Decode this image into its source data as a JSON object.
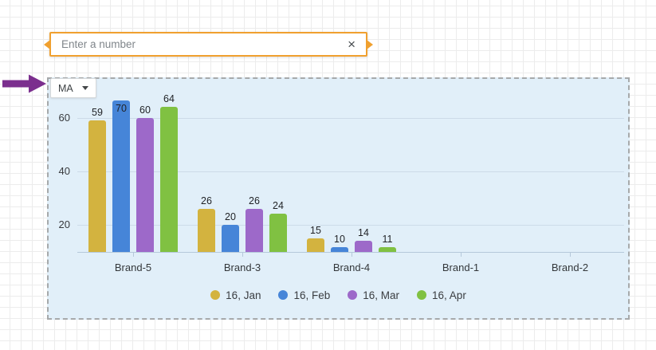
{
  "numeric_input": {
    "placeholder": "Enter a number",
    "clear_icon": "×"
  },
  "dropdown": {
    "value": "MA"
  },
  "colors": {
    "input_accent": "#f0a02f",
    "annotation_arrow": "#7b2f8e",
    "chart_background": "#e1eff9"
  },
  "chart_data": {
    "type": "bar",
    "title": "",
    "categories": [
      "Brand-5",
      "Brand-3",
      "Brand-4",
      "Brand-1",
      "Brand-2"
    ],
    "series": [
      {
        "name": "16, Jan",
        "color": "#d3b33f",
        "values": [
          59,
          26,
          15,
          0,
          0
        ]
      },
      {
        "name": "16, Feb",
        "color": "#4685d8",
        "values": [
          70,
          20,
          10,
          0,
          0
        ]
      },
      {
        "name": "16, Mar",
        "color": "#9d69c9",
        "values": [
          60,
          26,
          14,
          0,
          0
        ]
      },
      {
        "name": "16, Apr",
        "color": "#80c142",
        "values": [
          64,
          24,
          11,
          0,
          0
        ]
      }
    ],
    "y_ticks": [
      20,
      40,
      60
    ],
    "y_axis_min": 9.8,
    "data_labels": true,
    "grid": true,
    "legend_position": "bottom"
  }
}
